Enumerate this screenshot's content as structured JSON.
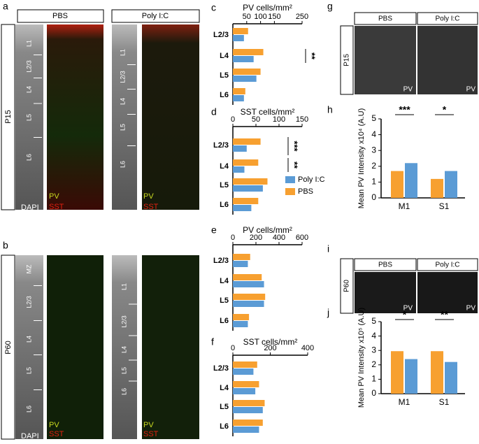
{
  "figure": {
    "labels": [
      "a",
      "b",
      "g",
      "i"
    ],
    "conditions": [
      "PBS",
      "Poly I:C"
    ],
    "ages": [
      "P15",
      "P60"
    ],
    "layers_a_pbs": [
      "L1",
      "L2/3",
      "L4",
      "L5",
      "L6"
    ],
    "layers_a_polyic": [
      "L1",
      "L2/3",
      "L4",
      "L5",
      "L6"
    ],
    "layers_b_pbs": [
      "MZ",
      "L2/3",
      "L4",
      "L5",
      "L6"
    ],
    "layers_b_polyic": [
      "L1",
      "L2/3",
      "L4",
      "L5",
      "L6"
    ],
    "stains": [
      "DAPI",
      "PV",
      "SST"
    ]
  },
  "chart_data": [
    {
      "type": "bar",
      "orientation": "horizontal",
      "panel_label": "c",
      "title": "PV cells/mm²",
      "categories": [
        "L2/3",
        "L4",
        "L5",
        "L6"
      ],
      "series": [
        {
          "name": "Poly I:C",
          "color": "#5b9bd5",
          "values": [
            40,
            75,
            85,
            40
          ]
        },
        {
          "name": "PBS",
          "color": "#f7a030",
          "values": [
            55,
            110,
            100,
            45
          ]
        }
      ],
      "xlim": [
        0,
        250
      ],
      "xticks": [
        50,
        100,
        150,
        250
      ],
      "annotations": [
        "**"
      ]
    },
    {
      "type": "bar",
      "orientation": "horizontal",
      "panel_label": "d",
      "title": "SST cells/mm²",
      "categories": [
        "L2/3",
        "L4",
        "L5",
        "L6"
      ],
      "series": [
        {
          "name": "Poly I:C",
          "color": "#5b9bd5",
          "values": [
            30,
            25,
            65,
            40
          ]
        },
        {
          "name": "PBS",
          "color": "#f7a030",
          "values": [
            60,
            55,
            75,
            55
          ]
        }
      ],
      "xlim": [
        0,
        150
      ],
      "xticks": [
        0,
        50,
        100,
        150
      ],
      "annotations": [
        "***",
        "**"
      ],
      "legend": "lower right"
    },
    {
      "type": "bar",
      "orientation": "horizontal",
      "panel_label": "e",
      "title": "PV cells/mm²",
      "categories": [
        "L2/3",
        "L4",
        "L5",
        "L6"
      ],
      "series": [
        {
          "name": "Poly I:C",
          "color": "#5b9bd5",
          "values": [
            130,
            270,
            270,
            130
          ]
        },
        {
          "name": "PBS",
          "color": "#f7a030",
          "values": [
            150,
            250,
            280,
            140
          ]
        }
      ],
      "xlim": [
        0,
        600
      ],
      "xticks": [
        0,
        200,
        400,
        600
      ]
    },
    {
      "type": "bar",
      "orientation": "horizontal",
      "panel_label": "f",
      "title": "SST cells/mm²",
      "categories": [
        "L2/3",
        "L4",
        "L5",
        "L6"
      ],
      "series": [
        {
          "name": "Poly I:C",
          "color": "#5b9bd5",
          "values": [
            110,
            120,
            160,
            140
          ]
        },
        {
          "name": "PBS",
          "color": "#f7a030",
          "values": [
            130,
            140,
            170,
            160
          ]
        }
      ],
      "xlim": [
        0,
        400
      ],
      "xticks": [
        0,
        200,
        400
      ]
    },
    {
      "type": "bar",
      "orientation": "vertical",
      "panel_label": "h",
      "y_label": "Mean PV Intensity x10⁴ (A.U)",
      "categories": [
        "M1",
        "S1"
      ],
      "series": [
        {
          "name": "PBS",
          "color": "#f7a030",
          "values": [
            1.7,
            1.2
          ]
        },
        {
          "name": "Poly I:C",
          "color": "#5b9bd5",
          "values": [
            2.2,
            1.7
          ]
        }
      ],
      "ylim": [
        0,
        5
      ],
      "yticks": [
        0,
        1,
        2,
        3,
        4,
        5
      ],
      "annotations": [
        "***",
        "*"
      ]
    },
    {
      "type": "bar",
      "orientation": "vertical",
      "panel_label": "j",
      "y_label": "Mean PV Intensity x10⁵ (A.U)",
      "categories": [
        "M1",
        "S1"
      ],
      "series": [
        {
          "name": "PBS",
          "color": "#f7a030",
          "values": [
            2.95,
            2.95
          ]
        },
        {
          "name": "Poly I:C",
          "color": "#5b9bd5",
          "values": [
            2.4,
            2.2
          ]
        }
      ],
      "ylim": [
        0,
        5
      ],
      "yticks": [
        0,
        1,
        2,
        3,
        4,
        5
      ],
      "annotations": [
        "*",
        "**"
      ]
    }
  ]
}
